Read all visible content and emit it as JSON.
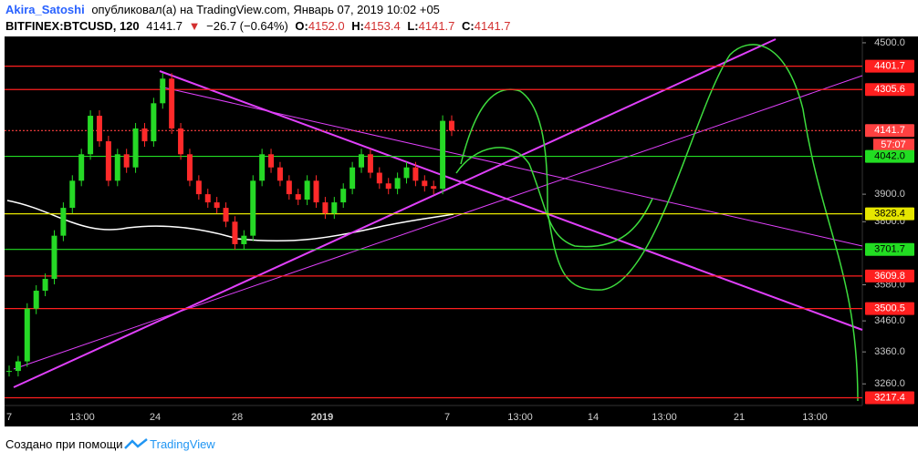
{
  "header": {
    "author": "Akira_Satoshi",
    "published": "опубликовал(а) на TradingView.com, Январь 07, 2019 10:02 +05",
    "symbol": "BITFINEX:BTCUSD, 120",
    "last": "4141.7",
    "arrow": "▼",
    "change": "−26.7 (−0.64%)",
    "ohlc": [
      {
        "label": "O:",
        "value": "4152.0"
      },
      {
        "label": "H:",
        "value": "4153.4"
      },
      {
        "label": "L:",
        "value": "4141.7"
      },
      {
        "label": "C:",
        "value": "4141.7"
      }
    ]
  },
  "chart_data": {
    "type": "candlestick",
    "log_scale": true,
    "ylim": [
      3194,
      4527
    ],
    "yticks": [
      {
        "value": 4500,
        "label": "4500.0"
      },
      {
        "value": 3900,
        "label": "3900.0"
      },
      {
        "value": 3800,
        "label": "3800.0"
      },
      {
        "value": 3580,
        "label": "3580.0"
      },
      {
        "value": 3460,
        "label": "3460.0"
      },
      {
        "value": 3360,
        "label": "3360.0"
      },
      {
        "value": 3260,
        "label": "3260.0"
      }
    ],
    "x_labels": [
      "7",
      "13:00",
      "24",
      "28",
      "2019",
      "7",
      "13:00",
      "14",
      "13:00",
      "21",
      "13:00"
    ],
    "values": [
      3300,
      3330,
      3500,
      3560,
      3600,
      3750,
      3850,
      3950,
      4050,
      4200,
      4100,
      3950,
      4050,
      4000,
      4150,
      4100,
      4250,
      4350,
      4150,
      4050,
      3950,
      3900,
      3870,
      3850,
      3800,
      3720,
      3750,
      3950,
      4050,
      4000,
      3950,
      3900,
      3880,
      3950,
      3870,
      3830,
      3870,
      3920,
      4000,
      4050,
      3980,
      3940,
      3920,
      3960,
      4000,
      3950,
      3930,
      3920,
      4180,
      4141.7
    ],
    "up_color": "#26d926",
    "down_color": "#ff2a2a",
    "levels": [
      {
        "value": 4401.7,
        "label": "4401.7",
        "color": "#ff1f1f"
      },
      {
        "value": 4305.6,
        "label": "4305.6",
        "color": "#ff1f1f"
      },
      {
        "value": 4141.7,
        "label": "4141.7",
        "color": "#ff4040",
        "dashed": true
      },
      {
        "value": 4042,
        "label": "4042.0",
        "color": "#22dd22"
      },
      {
        "value": 3828.4,
        "label": "3828.4",
        "color": "#e6e600"
      },
      {
        "value": 3701.7,
        "label": "3701.7",
        "color": "#22dd22"
      },
      {
        "value": 3609.8,
        "label": "3609.8",
        "color": "#ff1f1f"
      },
      {
        "value": 3500.5,
        "label": "3500.5",
        "color": "#ff1f1f"
      },
      {
        "value": 3217.4,
        "label": "3217.4",
        "color": "#ff1f1f"
      }
    ],
    "countdown": "57:07"
  },
  "footer": {
    "text": "Создано при помощи",
    "brand": "TradingView"
  }
}
